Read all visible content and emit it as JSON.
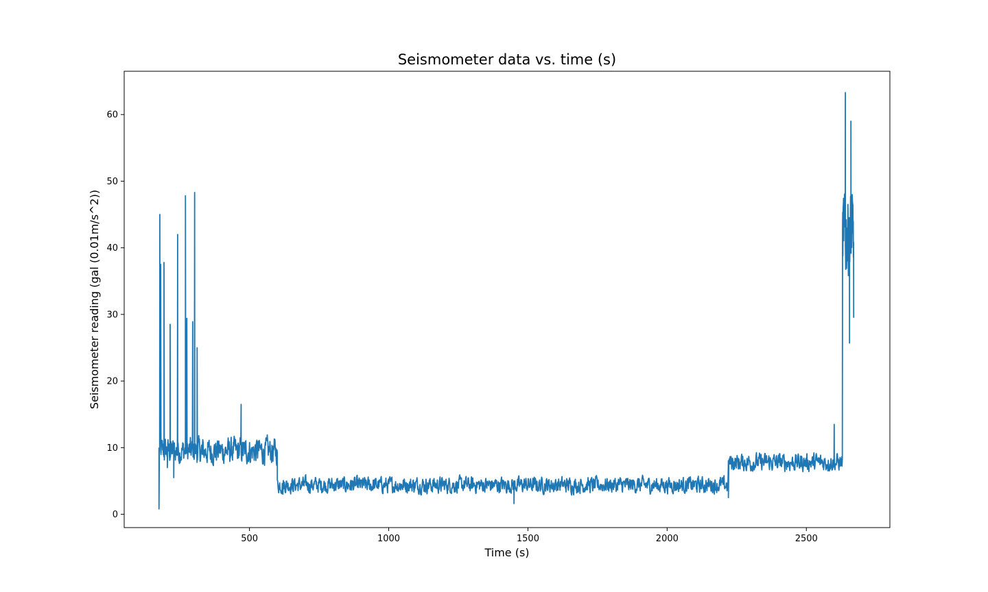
{
  "chart_data": {
    "type": "line",
    "title": "Seismometer data vs. time (s)",
    "xlabel": "Time (s)",
    "ylabel": "Seismometer reading (gal (0.01m/s^2))",
    "xlim": [
      50,
      2800
    ],
    "ylim": [
      -2,
      66.5
    ],
    "xticks": [
      500,
      1000,
      1500,
      2000,
      2500
    ],
    "yticks": [
      0,
      10,
      20,
      30,
      40,
      50,
      60
    ],
    "grid": false,
    "legend": "none",
    "line_color": "#1f77b4",
    "series": [
      {
        "name": "seismometer",
        "segments": [
          {
            "x0": 175,
            "x1": 600,
            "base": 9.5,
            "amp": 3.0
          },
          {
            "x0": 600,
            "x1": 2220,
            "base": 4.4,
            "amp": 1.8
          },
          {
            "x0": 2220,
            "x1": 2630,
            "base": 7.8,
            "amp": 2.0
          },
          {
            "x0": 2630,
            "x1": 2670,
            "base": 42,
            "amp": 9.0
          }
        ],
        "key_points": [
          {
            "x": 175,
            "y": 0.8
          },
          {
            "x": 178,
            "y": 45.0
          },
          {
            "x": 181,
            "y": 37.5
          },
          {
            "x": 193,
            "y": 37.8
          },
          {
            "x": 205,
            "y": 7.0
          },
          {
            "x": 215,
            "y": 28.5
          },
          {
            "x": 228,
            "y": 5.5
          },
          {
            "x": 242,
            "y": 42.0
          },
          {
            "x": 270,
            "y": 47.8
          },
          {
            "x": 275,
            "y": 29.4
          },
          {
            "x": 296,
            "y": 28.9
          },
          {
            "x": 303,
            "y": 48.3
          },
          {
            "x": 312,
            "y": 25.0
          },
          {
            "x": 330,
            "y": 9.0
          },
          {
            "x": 470,
            "y": 16.5
          },
          {
            "x": 620,
            "y": 3.0
          },
          {
            "x": 1450,
            "y": 1.6
          },
          {
            "x": 2220,
            "y": 2.5
          },
          {
            "x": 2600,
            "y": 13.5
          },
          {
            "x": 2640,
            "y": 63.3
          },
          {
            "x": 2655,
            "y": 25.7
          },
          {
            "x": 2660,
            "y": 59.0
          },
          {
            "x": 2670,
            "y": 29.5
          }
        ]
      }
    ]
  }
}
